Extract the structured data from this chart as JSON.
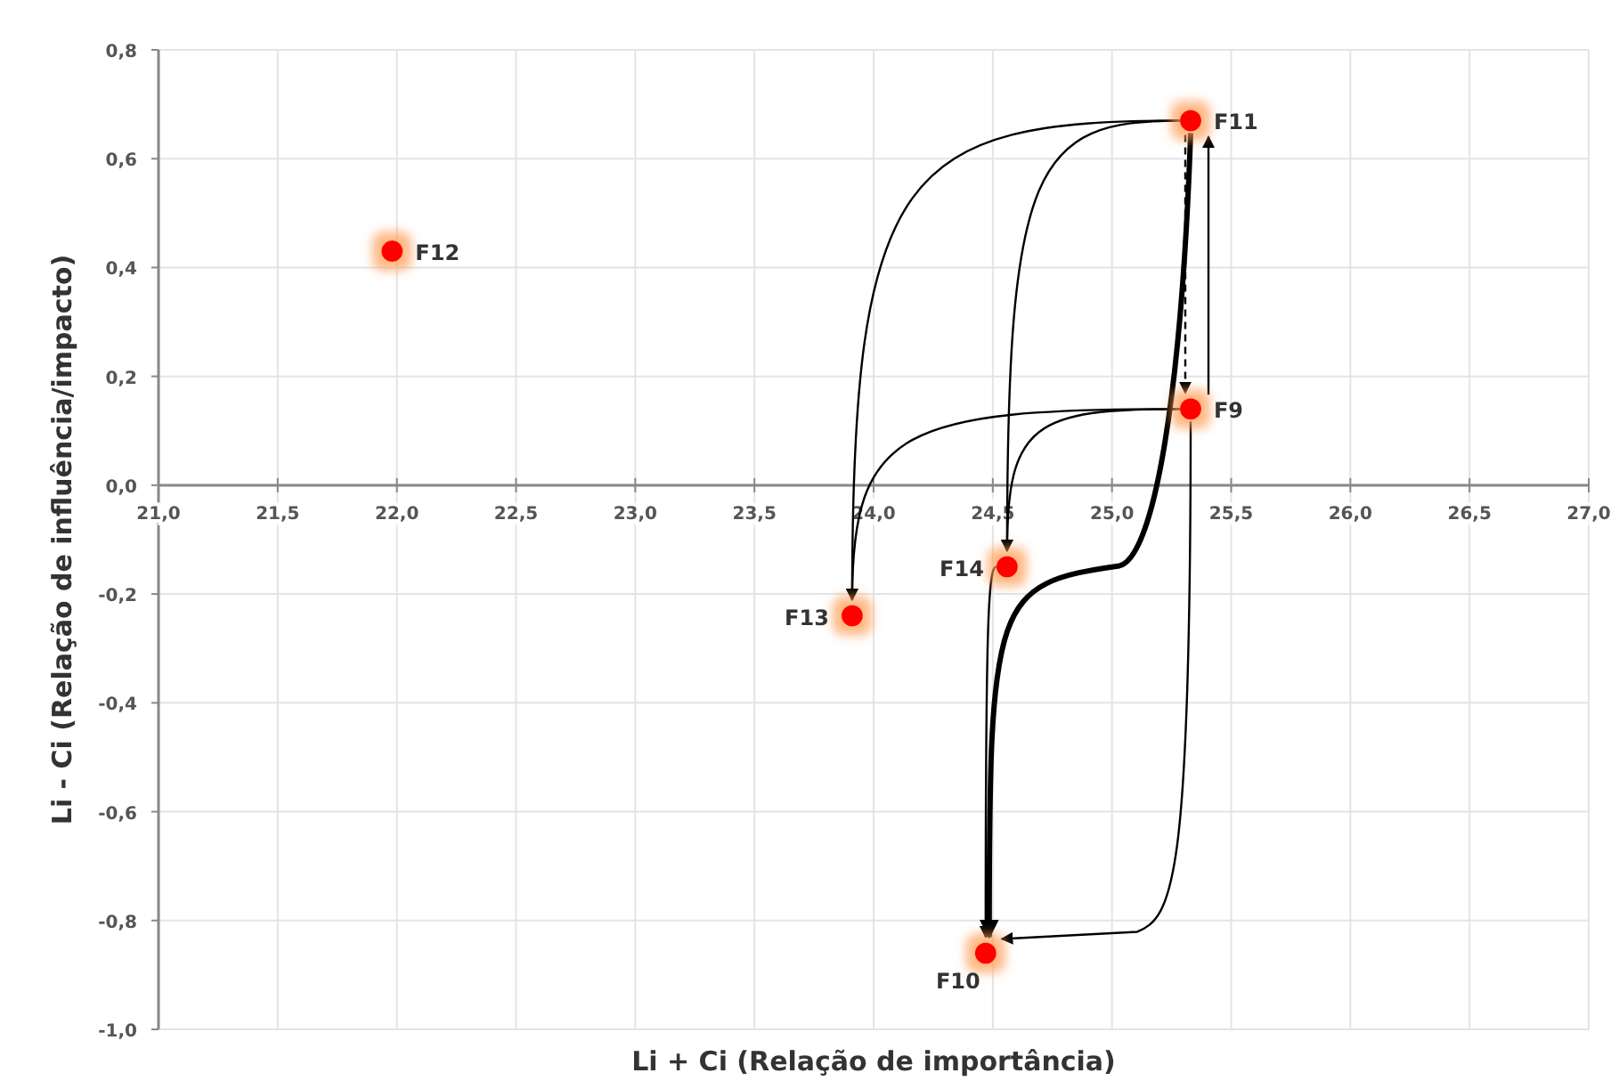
{
  "chart_data": {
    "type": "scatter",
    "xlabel": "Li + Ci (Relação de importância)",
    "ylabel": "Li - Ci (Relação de influência/impacto)",
    "xlim": [
      21,
      27
    ],
    "ylim": [
      -1,
      0.8
    ],
    "xticks": [
      {
        "value": 21,
        "label": "21,0"
      },
      {
        "value": 21.5,
        "label": "21,5"
      },
      {
        "value": 22,
        "label": "22,0"
      },
      {
        "value": 22.5,
        "label": "22,5"
      },
      {
        "value": 23,
        "label": "23,0"
      },
      {
        "value": 23.5,
        "label": "23,5"
      },
      {
        "value": 24,
        "label": "24,0"
      },
      {
        "value": 24.5,
        "label": "24,5"
      },
      {
        "value": 25,
        "label": "25,0"
      },
      {
        "value": 25.5,
        "label": "25,5"
      },
      {
        "value": 26,
        "label": "26,0"
      },
      {
        "value": 26.5,
        "label": "26,5"
      },
      {
        "value": 27,
        "label": "27,0"
      }
    ],
    "yticks": [
      {
        "value": -1,
        "label": "-1,0"
      },
      {
        "value": -0.8,
        "label": "-0,8"
      },
      {
        "value": -0.6,
        "label": "-0,6"
      },
      {
        "value": -0.4,
        "label": "-0,4"
      },
      {
        "value": -0.2,
        "label": "-0,2"
      },
      {
        "value": 0,
        "label": "0,0"
      },
      {
        "value": 0.2,
        "label": "0,2"
      },
      {
        "value": 0.4,
        "label": "0,4"
      },
      {
        "value": 0.6,
        "label": "0,6"
      },
      {
        "value": 0.8,
        "label": "0,8"
      }
    ],
    "grid": true,
    "marker": "circle",
    "series": [
      {
        "color": "#ff0000",
        "x": [
          25.33,
          24.47,
          25.33,
          21.98,
          23.91,
          24.56
        ],
        "values": [
          0.14,
          -0.86,
          0.67,
          0.43,
          -0.24,
          -0.15
        ]
      }
    ],
    "annotations": [
      {
        "text": "F9",
        "x": 25.33,
        "y": 0.14
      },
      {
        "text": "F10",
        "x": 24.47,
        "y": -0.86
      },
      {
        "text": "F11",
        "x": 25.33,
        "y": 0.67
      },
      {
        "text": "F12",
        "x": 21.98,
        "y": 0.43
      },
      {
        "text": "F13",
        "x": 23.91,
        "y": -0.24
      },
      {
        "text": "F14",
        "x": 24.56,
        "y": -0.15
      }
    ]
  }
}
